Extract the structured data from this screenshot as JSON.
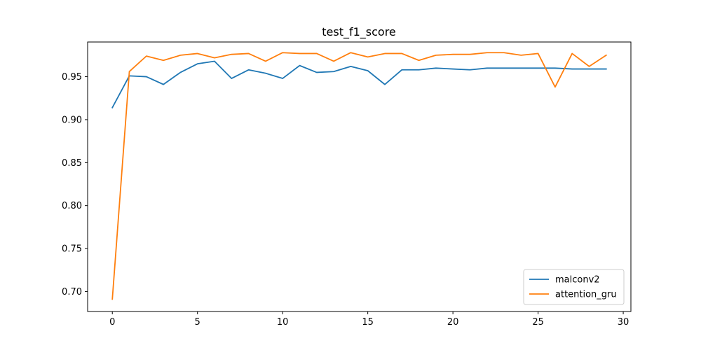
{
  "chart_data": {
    "type": "line",
    "title": "test_f1_score",
    "xlabel": "",
    "ylabel": "",
    "xlim": [
      -1.45,
      30.45
    ],
    "ylim": [
      0.6767,
      0.9904
    ],
    "xticks": [
      0,
      5,
      10,
      15,
      20,
      25,
      30
    ],
    "yticks": [
      0.7,
      0.75,
      0.8,
      0.85,
      0.9,
      0.95
    ],
    "xtick_labels": [
      "0",
      "5",
      "10",
      "15",
      "20",
      "25",
      "30"
    ],
    "ytick_labels": [
      "0.70",
      "0.75",
      "0.80",
      "0.85",
      "0.90",
      "0.95"
    ],
    "grid": false,
    "legend_position": "lower-right",
    "x": [
      0,
      1,
      2,
      3,
      4,
      5,
      6,
      7,
      8,
      9,
      10,
      11,
      12,
      13,
      14,
      15,
      16,
      17,
      18,
      19,
      20,
      21,
      22,
      23,
      24,
      25,
      26,
      27,
      28,
      29
    ],
    "series": [
      {
        "name": "malconv2",
        "color": "#1f77b4",
        "values": [
          0.914,
          0.951,
          0.95,
          0.941,
          0.955,
          0.965,
          0.968,
          0.948,
          0.958,
          0.954,
          0.948,
          0.963,
          0.955,
          0.956,
          0.962,
          0.957,
          0.941,
          0.958,
          0.958,
          0.96,
          0.959,
          0.958,
          0.96,
          0.96,
          0.96,
          0.96,
          0.96,
          0.959,
          0.959,
          0.959
        ]
      },
      {
        "name": "attention_gru",
        "color": "#ff7f0e",
        "values": [
          0.691,
          0.956,
          0.974,
          0.969,
          0.975,
          0.977,
          0.972,
          0.976,
          0.977,
          0.968,
          0.978,
          0.977,
          0.977,
          0.968,
          0.978,
          0.973,
          0.977,
          0.977,
          0.969,
          0.975,
          0.976,
          0.976,
          0.978,
          0.978,
          0.975,
          0.977,
          0.938,
          0.977,
          0.962,
          0.975
        ]
      }
    ]
  }
}
